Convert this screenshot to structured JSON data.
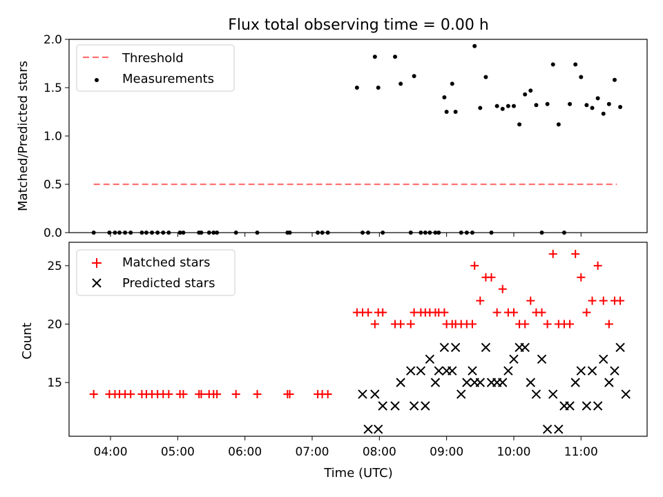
{
  "title": "Flux total observing time = 0.00 h",
  "xlabel": "Time (UTC)",
  "colors": {
    "threshold": "#ff7070",
    "measurements": "#000000",
    "matched": "#ff0000",
    "predicted": "#000000"
  },
  "chart_data": [
    {
      "type": "scatter",
      "title": "Flux total observing time = 0.00 h",
      "xlabel": "",
      "ylabel": "Matched/Predicted stars",
      "xlim": [
        "03:23",
        "11:59"
      ],
      "ylim": [
        0,
        2.0
      ],
      "yticks": [
        "0.0",
        "0.5",
        "1.0",
        "1.5",
        "2.0"
      ],
      "grid": false,
      "legend_position": "upper-left",
      "series": [
        {
          "name": "Threshold",
          "kind": "line",
          "style": "dashed",
          "x": [
            "03:45",
            "11:32"
          ],
          "y": [
            0.5,
            0.5
          ]
        },
        {
          "name": "Measurements",
          "kind": "scatter",
          "x": [
            "03:45",
            "03:59",
            "04:04",
            "04:08",
            "04:13",
            "04:18",
            "04:28",
            "04:32",
            "04:37",
            "04:42",
            "04:47",
            "04:52",
            "05:02",
            "05:05",
            "05:19",
            "05:21",
            "05:28",
            "05:32",
            "05:35",
            "05:52",
            "06:11",
            "06:38",
            "06:40",
            "07:05",
            "07:09",
            "07:14",
            "07:40",
            "07:45",
            "07:50",
            "07:56",
            "07:59",
            "08:03",
            "08:14",
            "08:19",
            "08:28",
            "08:31",
            "08:37",
            "08:41",
            "08:45",
            "08:50",
            "08:53",
            "08:58",
            "09:00",
            "09:05",
            "09:08",
            "09:13",
            "09:18",
            "09:23",
            "09:25",
            "09:30",
            "09:35",
            "09:40",
            "09:45",
            "09:50",
            "09:55",
            "10:00",
            "10:05",
            "10:10",
            "10:15",
            "10:20",
            "10:25",
            "10:30",
            "10:35",
            "10:40",
            "10:45",
            "10:50",
            "10:55",
            "11:00",
            "11:05",
            "11:10",
            "11:15",
            "11:20",
            "11:25",
            "11:30",
            "11:35"
          ],
          "y": [
            0,
            0,
            0,
            0,
            0,
            0,
            0,
            0,
            0,
            0,
            0,
            0,
            0,
            0,
            0,
            0,
            0,
            0,
            0,
            0,
            0,
            0,
            0,
            0,
            0,
            0,
            1.5,
            0,
            0,
            1.82,
            1.5,
            0,
            1.82,
            1.54,
            0,
            1.62,
            0,
            0,
            0,
            0,
            0,
            1.4,
            1.25,
            1.54,
            1.25,
            0,
            0,
            0,
            1.93,
            1.29,
            1.61,
            0,
            1.31,
            1.28,
            1.31,
            1.31,
            1.12,
            1.43,
            1.47,
            1.32,
            0,
            1.33,
            1.74,
            1.12,
            0,
            1.33,
            1.74,
            1.61,
            1.32,
            1.29,
            1.39,
            1.23,
            1.33,
            1.58,
            1.3
          ]
        }
      ]
    },
    {
      "type": "scatter",
      "xlabel": "Time (UTC)",
      "ylabel": "Count",
      "xlim": [
        "03:23",
        "11:59"
      ],
      "ylim": [
        10.4,
        27.0
      ],
      "xticks": [
        "04:00",
        "05:00",
        "06:00",
        "07:00",
        "08:00",
        "09:00",
        "10:00",
        "11:00"
      ],
      "yticks": [
        "15",
        "20",
        "25"
      ],
      "grid": false,
      "legend_position": "upper-left",
      "series": [
        {
          "name": "Matched stars",
          "marker": "+",
          "x": [
            "03:45",
            "03:59",
            "04:04",
            "04:08",
            "04:13",
            "04:18",
            "04:28",
            "04:32",
            "04:37",
            "04:42",
            "04:47",
            "04:52",
            "05:02",
            "05:05",
            "05:19",
            "05:21",
            "05:28",
            "05:32",
            "05:35",
            "05:52",
            "06:11",
            "06:38",
            "06:40",
            "07:05",
            "07:09",
            "07:14",
            "07:40",
            "07:45",
            "07:50",
            "07:56",
            "07:59",
            "08:03",
            "08:14",
            "08:19",
            "08:28",
            "08:31",
            "08:37",
            "08:41",
            "08:45",
            "08:50",
            "08:53",
            "08:58",
            "09:00",
            "09:05",
            "09:08",
            "09:13",
            "09:18",
            "09:23",
            "09:25",
            "09:30",
            "09:35",
            "09:40",
            "09:45",
            "09:50",
            "09:55",
            "10:00",
            "10:05",
            "10:10",
            "10:15",
            "10:20",
            "10:25",
            "10:30",
            "10:35",
            "10:40",
            "10:45",
            "10:50",
            "10:55",
            "11:00",
            "11:05",
            "11:10",
            "11:15",
            "11:20",
            "11:25",
            "11:30",
            "11:35"
          ],
          "y": [
            14,
            14,
            14,
            14,
            14,
            14,
            14,
            14,
            14,
            14,
            14,
            14,
            14,
            14,
            14,
            14,
            14,
            14,
            14,
            14,
            14,
            14,
            14,
            14,
            14,
            14,
            21,
            21,
            21,
            20,
            21,
            21,
            20,
            20,
            20,
            21,
            21,
            21,
            21,
            21,
            21,
            21,
            20,
            20,
            20,
            20,
            20,
            20,
            25,
            22,
            24,
            24,
            21,
            23,
            21,
            21,
            20,
            20,
            22,
            21,
            21,
            20,
            26,
            20,
            20,
            20,
            26,
            24,
            21,
            22,
            25,
            22,
            20,
            22,
            22
          ]
        },
        {
          "name": "Predicted stars",
          "marker": "x",
          "x": [
            "07:45",
            "07:50",
            "07:56",
            "07:59",
            "08:03",
            "08:14",
            "08:19",
            "08:28",
            "08:31",
            "08:37",
            "08:41",
            "08:45",
            "08:50",
            "08:53",
            "08:58",
            "09:00",
            "09:05",
            "09:08",
            "09:13",
            "09:18",
            "09:23",
            "09:25",
            "09:30",
            "09:35",
            "09:40",
            "09:45",
            "09:50",
            "09:55",
            "10:00",
            "10:05",
            "10:10",
            "10:15",
            "10:20",
            "10:25",
            "10:30",
            "10:35",
            "10:40",
            "10:45",
            "10:50",
            "10:55",
            "11:00",
            "11:05",
            "11:10",
            "11:15",
            "11:20",
            "11:25",
            "11:30",
            "11:35",
            "11:40"
          ],
          "y": [
            14,
            11,
            14,
            11,
            13,
            13,
            15,
            16,
            13,
            16,
            13,
            17,
            15,
            16,
            18,
            16,
            16,
            18,
            14,
            15,
            16,
            15,
            15,
            18,
            15,
            15,
            15,
            16,
            17,
            18,
            18,
            15,
            14,
            17,
            11,
            14,
            11,
            13,
            13,
            15,
            16,
            13,
            16,
            13,
            17,
            15,
            16,
            18,
            14
          ]
        }
      ]
    }
  ]
}
